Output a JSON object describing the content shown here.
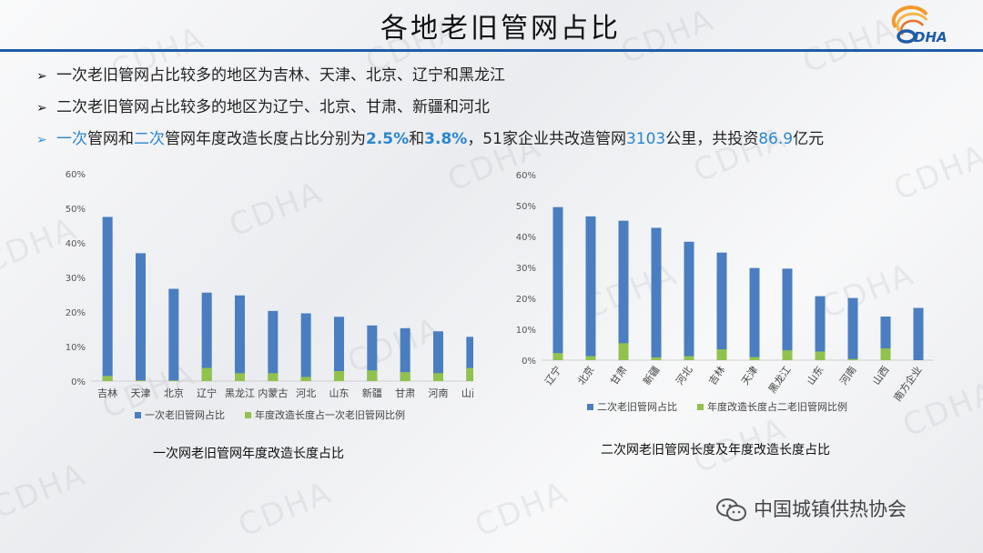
{
  "page": {
    "title": "各地老旧管网占比",
    "logo_text": "DHA",
    "watermark": "CDHA",
    "footer": "中国城镇供热协会"
  },
  "bullets": [
    {
      "text": "一次老旧管网占比较多的地区为吉林、天津、北京、辽宁和黑龙江"
    },
    {
      "text": "二次老旧管网占比较多的地区为辽宁、北京、甘肃、新疆和河北"
    },
    {
      "segments": [
        {
          "t": "一次",
          "s": "b"
        },
        {
          "t": "管网和",
          "s": ""
        },
        {
          "t": "二次",
          "s": "b"
        },
        {
          "t": "管网年度改造长度占比分别为",
          "s": ""
        },
        {
          "t": "2.5%",
          "s": "bb"
        },
        {
          "t": "和",
          "s": ""
        },
        {
          "t": "3.8%",
          "s": "bb"
        },
        {
          "t": "，51家企业共改造管网",
          "s": ""
        },
        {
          "t": "3103",
          "s": "b"
        },
        {
          "t": "公里，共投资",
          "s": ""
        },
        {
          "t": "86.9",
          "s": "b"
        },
        {
          "t": "亿元",
          "s": ""
        }
      ]
    }
  ],
  "colors": {
    "blue": "#4a7ec0",
    "green": "#92c24e",
    "accent": "#2a86cf",
    "rule": "#1f5ca8"
  },
  "chart_data": [
    {
      "type": "bar",
      "caption": "一次网老旧管网年度改造长度占比",
      "categories": [
        "吉林",
        "天津",
        "北京",
        "辽宁",
        "黑龙江",
        "内蒙古",
        "河北",
        "山东",
        "新疆",
        "甘肃",
        "河南",
        "山西"
      ],
      "series": [
        {
          "name": "一次老旧管网占比",
          "values": [
            47.5,
            37,
            26.7,
            25.6,
            24.8,
            20.3,
            19.6,
            18.6,
            16.1,
            15.3,
            14.4,
            12.8
          ]
        },
        {
          "name": "年度改造长度占一次老旧管网比例",
          "values": [
            1.5,
            0.2,
            0.2,
            3.8,
            2.3,
            2.3,
            1.2,
            2.9,
            3.1,
            2.6,
            2.3,
            3.8
          ]
        }
      ],
      "yticks": [
        "0%",
        "10%",
        "20%",
        "30%",
        "40%",
        "50%",
        "60%"
      ],
      "ylim": [
        0,
        60
      ],
      "label_rotation": 0,
      "grid": false,
      "legend": "bottom"
    },
    {
      "type": "bar",
      "caption": "二次网老旧管网长度及年度改造长度占比",
      "categories": [
        "辽宁",
        "北京",
        "甘肃",
        "新疆",
        "河北",
        "吉林",
        "天津",
        "黑龙江",
        "山东",
        "河南",
        "山西",
        "南方企业"
      ],
      "series": [
        {
          "name": "二次老旧管网占比",
          "values": [
            49.5,
            46.5,
            45.1,
            42.8,
            38.3,
            34.8,
            29.8,
            29.6,
            20.7,
            20.1,
            14.1,
            16.9
          ]
        },
        {
          "name": "年度改造长度占二老旧管网比例",
          "values": [
            2.3,
            1.3,
            5.5,
            0.9,
            1.3,
            3.5,
            1.0,
            3.2,
            2.8,
            0.4,
            3.8,
            0
          ]
        }
      ],
      "yticks": [
        "0%",
        "10%",
        "20%",
        "30%",
        "40%",
        "50%",
        "60%"
      ],
      "ylim": [
        0,
        60
      ],
      "label_rotation": -55,
      "grid": false,
      "legend": "bottom"
    }
  ]
}
